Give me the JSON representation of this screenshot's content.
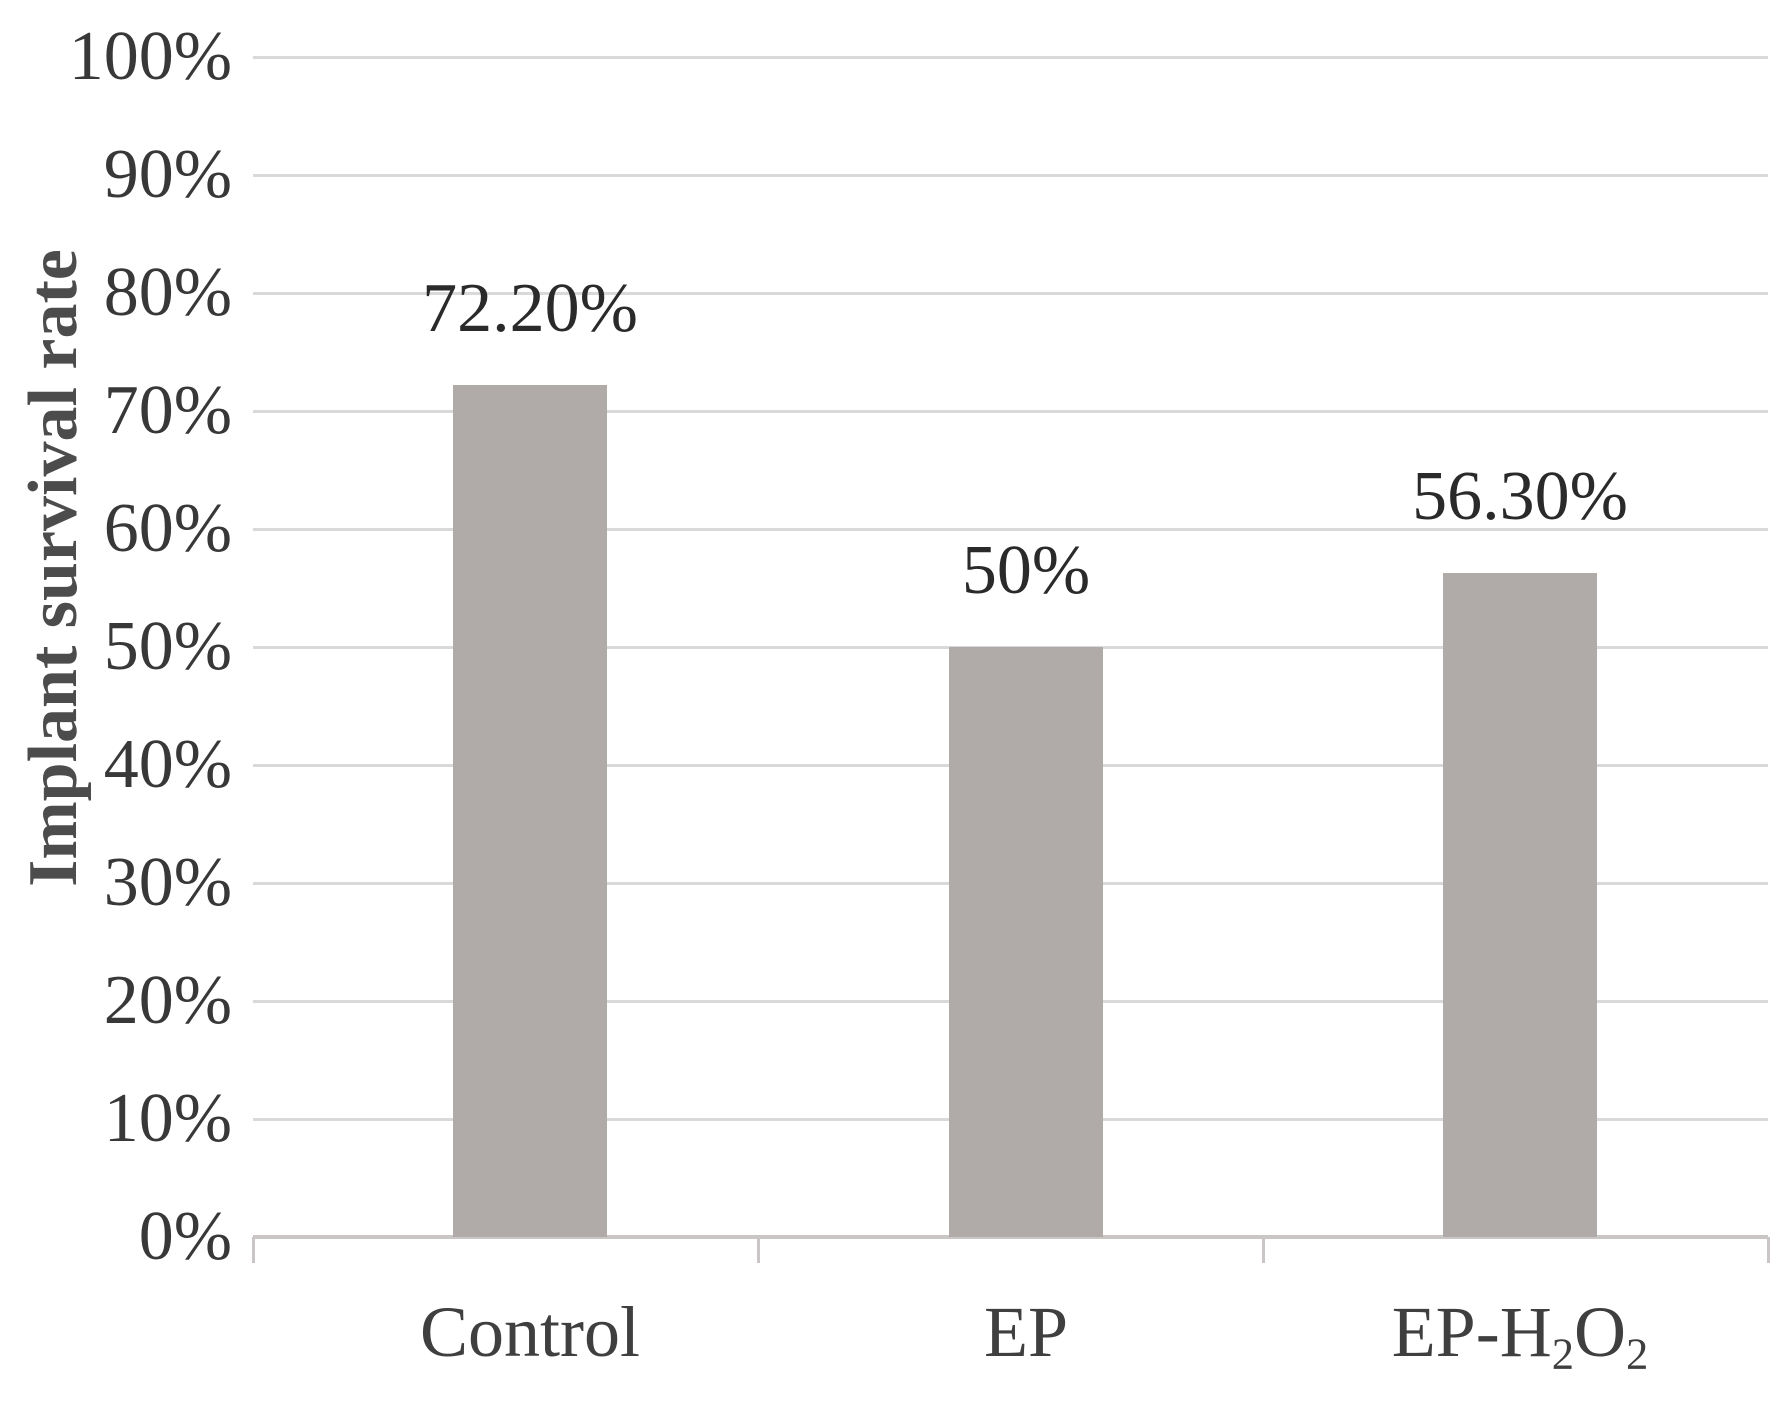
{
  "chart_data": {
    "type": "bar",
    "categories": [
      "Control",
      "EP",
      "EP-H2O2"
    ],
    "values": [
      72.2,
      50,
      56.3
    ],
    "data_labels": [
      "72.20%",
      "50%",
      "56.30%"
    ],
    "title": "",
    "xlabel": "",
    "ylabel": "Implant survival rate",
    "ylim": [
      0,
      100
    ],
    "ytick_step": 10,
    "ytick_labels": [
      "0%",
      "10%",
      "20%",
      "30%",
      "40%",
      "50%",
      "60%",
      "70%",
      "80%",
      "90%",
      "100%"
    ],
    "grid": true,
    "legend_position": "none",
    "bar_color": "#b0aba9",
    "gridline_color": "#d9d9d9",
    "axis_color": "#c9c6c5",
    "tick_label_color": "#383838",
    "data_label_color": "#2a2a2a",
    "category_label_color": "#3f3f3f",
    "axis_title_color": "#4c4c4c"
  },
  "categories_rich": [
    {
      "name": "Control",
      "parts": [
        {
          "t": "Control",
          "sub": false
        }
      ]
    },
    {
      "name": "EP",
      "parts": [
        {
          "t": "EP",
          "sub": false
        }
      ]
    },
    {
      "name": "EP-H2O2",
      "parts": [
        {
          "t": "EP-H",
          "sub": false
        },
        {
          "t": "2",
          "sub": true
        },
        {
          "t": "O",
          "sub": false
        },
        {
          "t": "2",
          "sub": true
        }
      ]
    }
  ]
}
